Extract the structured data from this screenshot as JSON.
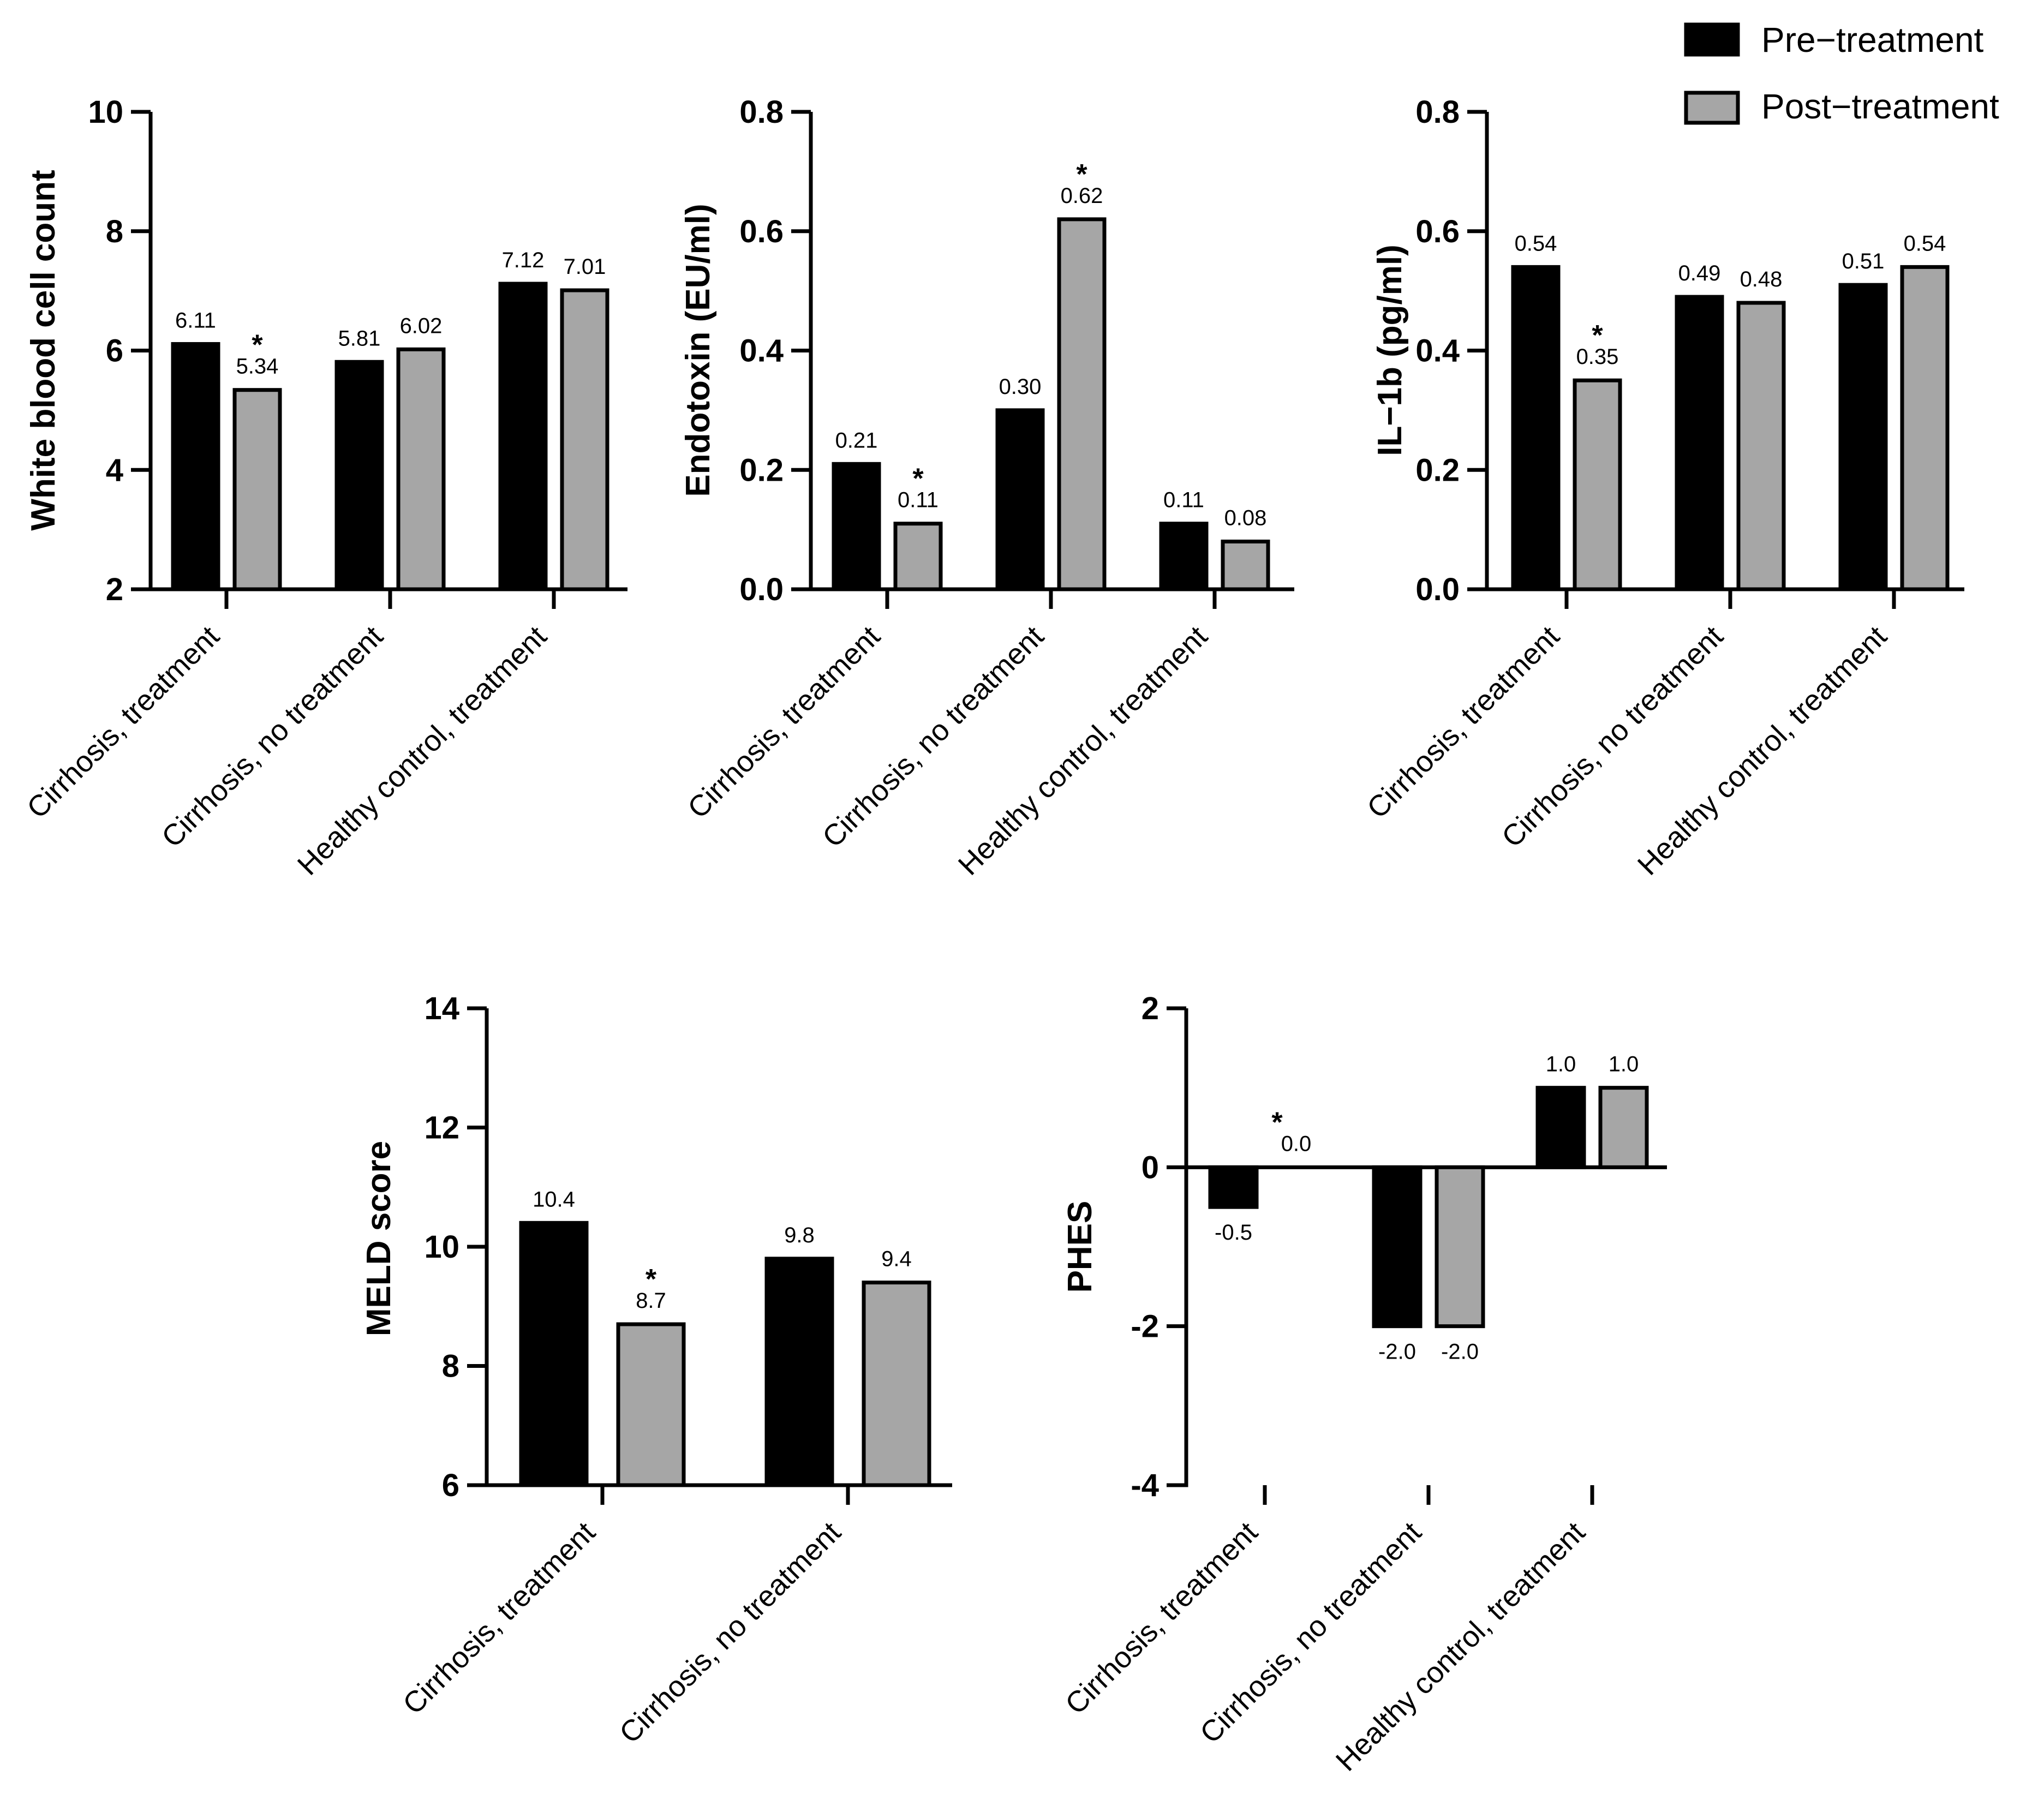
{
  "legend": {
    "items": [
      {
        "label": "Pre−treatment",
        "color": "#000000"
      },
      {
        "label": "Post−treatment",
        "color": "#a6a6a6"
      }
    ]
  },
  "chart_data": [
    {
      "id": "wbc",
      "type": "bar",
      "ylabel": "White blood cell count",
      "ylim": [
        2,
        10
      ],
      "yticks": [
        2,
        4,
        6,
        8,
        10
      ],
      "tick_decimals": 0,
      "categories": [
        "Cirrhosis, treatment",
        "Cirrhosis, no treatment",
        "Healthy control, treatment"
      ],
      "series": [
        {
          "name": "Pre−treatment",
          "values": [
            6.11,
            5.81,
            7.12
          ],
          "labels": [
            "6.11",
            "5.81",
            "7.12"
          ]
        },
        {
          "name": "Post−treatment",
          "values": [
            5.34,
            6.02,
            7.01
          ],
          "labels": [
            "5.34",
            "6.02",
            "7.01"
          ]
        }
      ],
      "significance": [
        {
          "category": 0,
          "series": 1,
          "mark": "*"
        }
      ]
    },
    {
      "id": "endotoxin",
      "type": "bar",
      "ylabel": "Endotoxin (EU/ml)",
      "ylim": [
        0,
        0.8
      ],
      "yticks": [
        0.0,
        0.2,
        0.4,
        0.6,
        0.8
      ],
      "tick_decimals": 1,
      "categories": [
        "Cirrhosis, treatment",
        "Cirrhosis, no treatment",
        "Healthy control, treatment"
      ],
      "series": [
        {
          "name": "Pre−treatment",
          "values": [
            0.21,
            0.3,
            0.11
          ],
          "labels": [
            "0.21",
            "0.30",
            "0.11"
          ]
        },
        {
          "name": "Post−treatment",
          "values": [
            0.11,
            0.62,
            0.08
          ],
          "labels": [
            "0.11",
            "0.62",
            "0.08"
          ]
        }
      ],
      "significance": [
        {
          "category": 0,
          "series": 1,
          "mark": "*"
        },
        {
          "category": 1,
          "series": 1,
          "mark": "*"
        }
      ]
    },
    {
      "id": "il1b",
      "type": "bar",
      "ylabel": "IL−1b (pg/ml)",
      "ylim": [
        0,
        0.8
      ],
      "yticks": [
        0.0,
        0.2,
        0.4,
        0.6,
        0.8
      ],
      "tick_decimals": 1,
      "categories": [
        "Cirrhosis, treatment",
        "Cirrhosis, no treatment",
        "Healthy control, treatment"
      ],
      "series": [
        {
          "name": "Pre−treatment",
          "values": [
            0.54,
            0.49,
            0.51
          ],
          "labels": [
            "0.54",
            "0.49",
            "0.51"
          ]
        },
        {
          "name": "Post−treatment",
          "values": [
            0.35,
            0.48,
            0.54
          ],
          "labels": [
            "0.35",
            "0.48",
            "0.54"
          ]
        }
      ],
      "significance": [
        {
          "category": 0,
          "series": 1,
          "mark": "*"
        }
      ]
    },
    {
      "id": "meld",
      "type": "bar",
      "ylabel": "MELD score",
      "ylim": [
        6,
        14
      ],
      "yticks": [
        6,
        8,
        10,
        12,
        14
      ],
      "tick_decimals": 0,
      "categories": [
        "Cirrhosis, treatment",
        "Cirrhosis, no treatment"
      ],
      "series": [
        {
          "name": "Pre−treatment",
          "values": [
            10.4,
            9.8
          ],
          "labels": [
            "10.4",
            "9.8"
          ]
        },
        {
          "name": "Post−treatment",
          "values": [
            8.7,
            9.4
          ],
          "labels": [
            "8.7",
            "9.4"
          ]
        }
      ],
      "significance": [
        {
          "category": 0,
          "series": 1,
          "mark": "*"
        }
      ]
    },
    {
      "id": "phes",
      "type": "bar",
      "ylabel": "PHES",
      "ylim": [
        -4,
        2
      ],
      "yticks": [
        -4,
        -2,
        0,
        2
      ],
      "tick_decimals": 0,
      "categories": [
        "Cirrhosis, treatment",
        "Cirrhosis, no treatment",
        "Healthy control, treatment"
      ],
      "series": [
        {
          "name": "Pre−treatment",
          "values": [
            -0.5,
            -2.0,
            1.0
          ],
          "labels": [
            "-0.5",
            "-2.0",
            "1.0"
          ]
        },
        {
          "name": "Post−treatment",
          "values": [
            0.0,
            -2.0,
            1.0
          ],
          "labels": [
            "0.0",
            "-2.0",
            "1.0"
          ]
        }
      ],
      "significance": [
        {
          "category": 0,
          "series": 1,
          "mark": "*"
        }
      ]
    }
  ]
}
